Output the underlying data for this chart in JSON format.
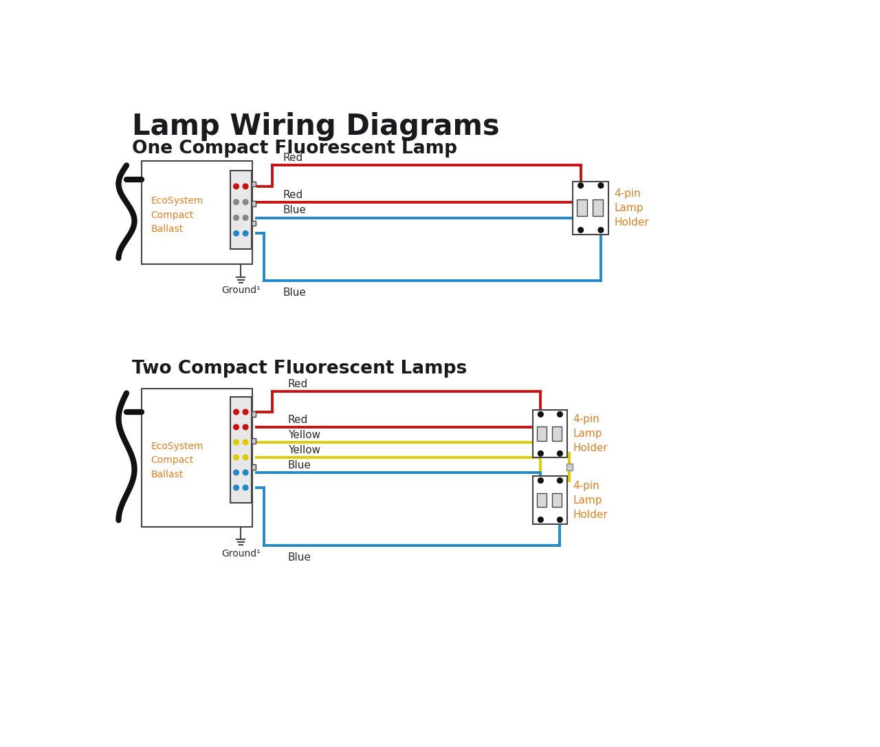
{
  "title": "Lamp Wiring Diagrams",
  "subtitle1": "One Compact Fluorescent Lamp",
  "subtitle2": "Two Compact Fluorescent Lamps",
  "title_color": "#1a1a1e",
  "subtitle_color": "#1a1a1e",
  "label_color": "#e08020",
  "wire_label_color": "#2a2a2a",
  "red_color": "#cc1010",
  "blue_color": "#2288cc",
  "yellow_color": "#ddcc00",
  "black_color": "#111111",
  "dark_gray": "#444444",
  "mid_gray": "#888888",
  "light_gray": "#cccccc",
  "pin_color": "#111111",
  "background": "#ffffff",
  "wire_lw": 2.8
}
